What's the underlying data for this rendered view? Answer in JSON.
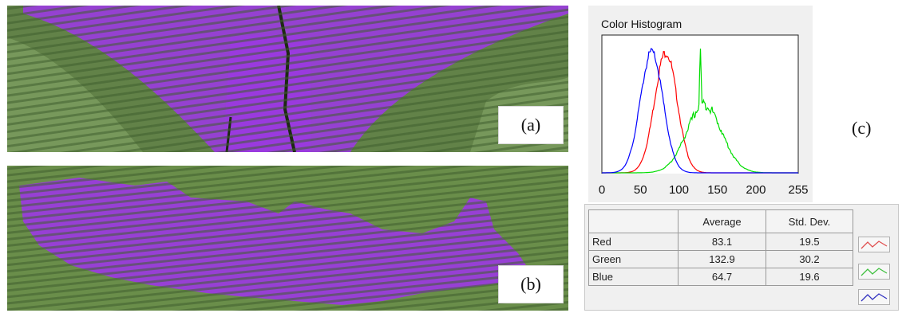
{
  "panels": {
    "a": {
      "label": "(a)"
    },
    "b": {
      "label": "(b)"
    },
    "c": {
      "label": "(c)"
    }
  },
  "chart_data": {
    "type": "line",
    "title": "Color Histogram",
    "xlim": [
      0,
      255
    ],
    "x_ticks": [
      0,
      50,
      100,
      150,
      200,
      255
    ],
    "series": [
      {
        "name": "Red",
        "color": "#ff0000",
        "average": 83.1,
        "std": 19.5
      },
      {
        "name": "Green",
        "color": "#00dd00",
        "average": 132.9,
        "std": 30.2
      },
      {
        "name": "Blue",
        "color": "#0000ff",
        "average": 64.7,
        "std": 19.6
      }
    ]
  },
  "stats_table": {
    "headers": [
      "",
      "Average",
      "Std. Dev."
    ],
    "rows": [
      {
        "name": "Red",
        "average": "83.1",
        "std": "19.5",
        "color": "#e05050"
      },
      {
        "name": "Green",
        "average": "132.9",
        "std": "30.2",
        "color": "#40c040"
      },
      {
        "name": "Blue",
        "average": "64.7",
        "std": "19.6",
        "color": "#3030c0"
      }
    ]
  }
}
